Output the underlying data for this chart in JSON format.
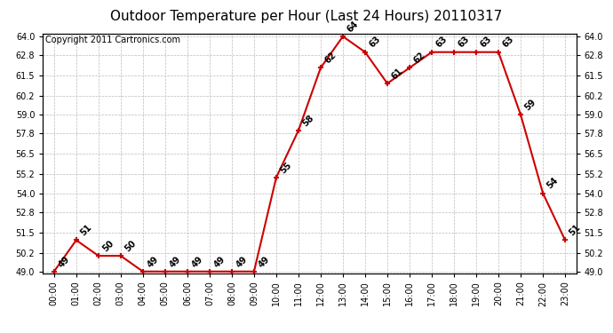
{
  "title": "Outdoor Temperature per Hour (Last 24 Hours) 20110317",
  "copyright": "Copyright 2011 Cartronics.com",
  "hours": [
    "00:00",
    "01:00",
    "02:00",
    "03:00",
    "04:00",
    "05:00",
    "06:00",
    "07:00",
    "08:00",
    "09:00",
    "10:00",
    "11:00",
    "12:00",
    "13:00",
    "14:00",
    "15:00",
    "16:00",
    "17:00",
    "18:00",
    "19:00",
    "20:00",
    "21:00",
    "22:00",
    "23:00"
  ],
  "temps": [
    49,
    51,
    50,
    50,
    49,
    49,
    49,
    49,
    49,
    49,
    55,
    58,
    62,
    64,
    63,
    61,
    62,
    63,
    63,
    63,
    63,
    59,
    54,
    51
  ],
  "ylim_min": 49.0,
  "ylim_max": 64.0,
  "yticks": [
    49.0,
    50.2,
    51.5,
    52.8,
    54.0,
    55.2,
    56.5,
    57.8,
    59.0,
    60.2,
    61.5,
    62.8,
    64.0
  ],
  "line_color": "#cc0000",
  "marker_color": "#cc0000",
  "bg_color": "#ffffff",
  "grid_color": "#bbbbbb",
  "title_fontsize": 11,
  "label_fontsize": 7,
  "tick_fontsize": 7,
  "copyright_fontsize": 7
}
